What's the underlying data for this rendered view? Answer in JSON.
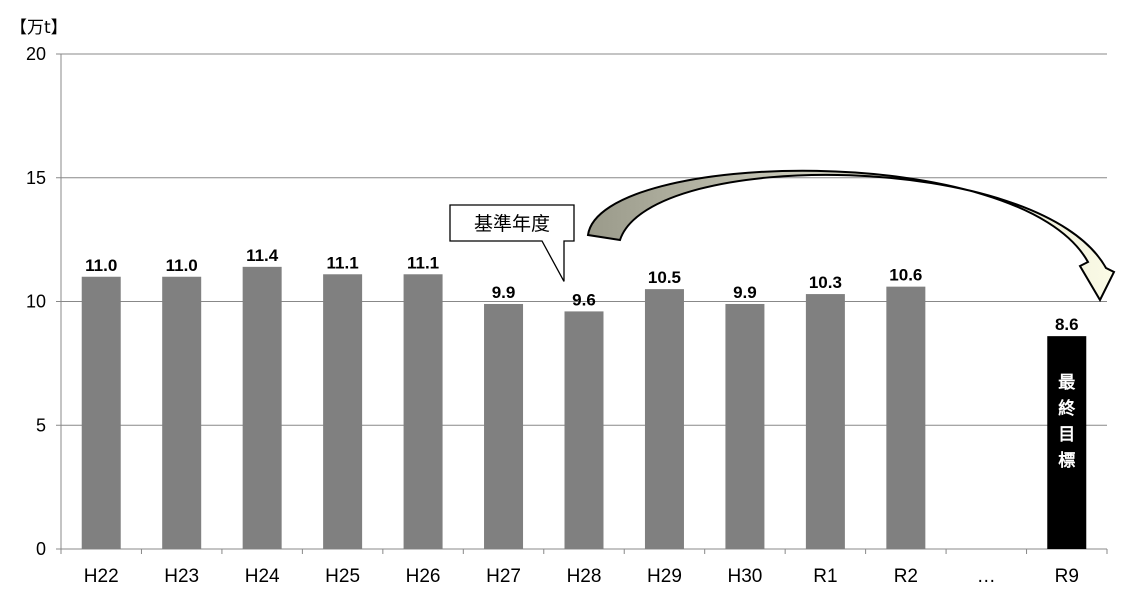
{
  "chart_data": {
    "type": "bar",
    "unit_label": "【万t】",
    "categories": [
      "H22",
      "H23",
      "H24",
      "H25",
      "H26",
      "H27",
      "H28",
      "H29",
      "H30",
      "R1",
      "R2",
      "…",
      "R9"
    ],
    "values": [
      11.0,
      11.0,
      11.4,
      11.1,
      11.1,
      9.9,
      9.6,
      10.5,
      9.9,
      10.3,
      10.6,
      null,
      8.6
    ],
    "value_labels": [
      "11.0",
      "11.0",
      "11.4",
      "11.1",
      "11.1",
      "9.9",
      "9.6",
      "10.5",
      "9.9",
      "10.3",
      "10.6",
      "",
      "8.6"
    ],
    "ylim": [
      0,
      20
    ],
    "yticks": [
      "0",
      "5",
      "10",
      "15",
      "20"
    ],
    "grid": true,
    "bar_color": "#808080",
    "target_color": "#000000",
    "target_index": 12,
    "target_text": [
      "最",
      "終",
      "目",
      "標"
    ],
    "annotation": {
      "text": "基準年度",
      "category": "H28"
    }
  }
}
